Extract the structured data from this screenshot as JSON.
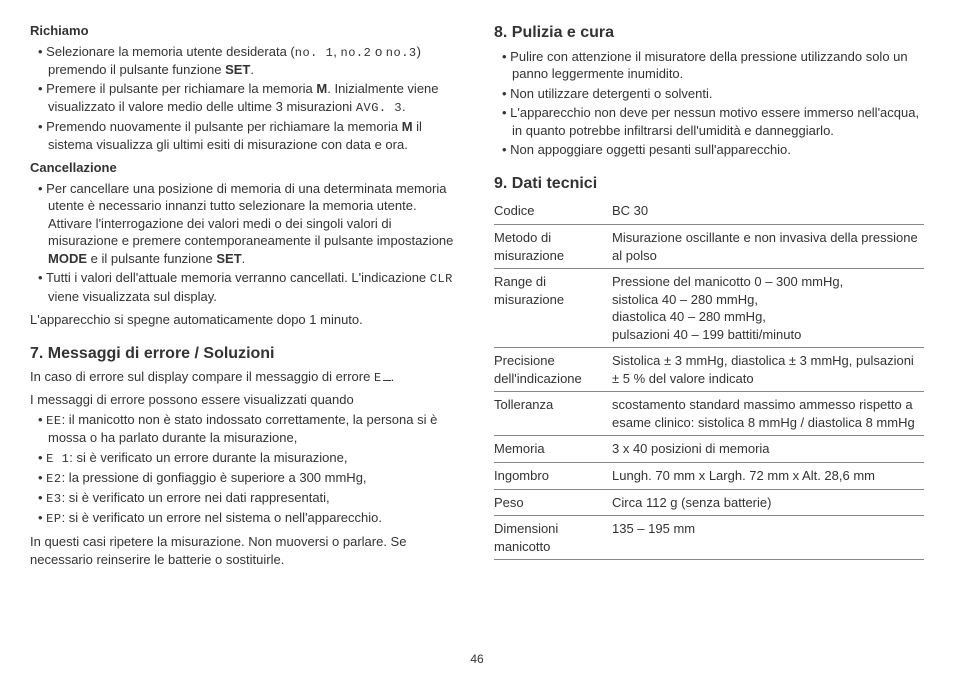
{
  "page_number": "46",
  "left": {
    "richiamo": {
      "heading": "Richiamo",
      "items": [
        "Selezionare la memoria utente desiderata (<span class='digital'>no. 1</span>, <span class='digital'>no.2</span> o <span class='digital'>no.3</span>) premendo il pulsante funzione <span class='bold'>SET</span>.",
        "Premere il pulsante per richiamare la memoria <span class='bold'>M</span>. Inizialmente viene visualizzato il valore medio delle ultime 3 misurazioni <span class='digital'>AVG. 3</span>.",
        "Premendo nuovamente il pulsante per richiamare la memoria <span class='bold'>M</span> il sistema visualizza gli ultimi esiti di misurazione con data e ora."
      ]
    },
    "cancellazione": {
      "heading": "Cancellazione",
      "items": [
        "Per cancellare una posizione di memoria di una determinata memoria utente è necessario innanzi tutto selezionare la memoria utente. Attivare l'interrogazione dei valori medi o dei singoli valori di misurazione e premere contemporaneamente il pulsante impostazione <span class='bold'>MODE</span> e il pulsante funzione <span class='bold'>SET</span>.",
        "Tutti i valori dell'attuale memoria verranno cancellati. L'indicazione <span class='digital'>CLR</span> viene visualizzata sul display."
      ],
      "after": "L'apparecchio si spegne automaticamente dopo 1 minuto."
    },
    "sec7": {
      "heading": "7. Messaggi di errore / Soluzioni",
      "intro1": "In caso di errore sul display compare il messaggio di errore <span class='digital'>E</span><span class='u'></span>.",
      "intro2": "I messaggi di errore possono essere visualizzati quando",
      "items": [
        "<span class='digital'>EE</span>: il manicotto non è stato indossato correttamente, la persona si è mossa o ha parlato durante la misurazione,",
        "<span class='digital'>E 1</span>: si è verificato un errore durante la misurazione,",
        "<span class='digital'>E2</span>: la pressione di gonfiaggio è superiore a 300 mmHg,",
        "<span class='digital'>E3</span>: si è verificato un errore nei dati rappresentati,",
        "<span class='digital'>EP</span>: si è verificato un errore nel sistema o nell'apparecchio."
      ],
      "after": "In questi casi ripetere la misurazione. Non muoversi o parlare. Se necessario reinserire le batterie o sostituirle."
    }
  },
  "right": {
    "sec8": {
      "heading": "8. Pulizia e cura",
      "items": [
        "Pulire con attenzione il misuratore della pressione utilizzando solo un panno leggermente inumidito.",
        "Non utilizzare detergenti o solventi.",
        "L'apparecchio non deve per nessun motivo essere immerso nell'acqua, in quanto potrebbe infiltrarsi dell'umidità e danneggiarlo.",
        "Non appoggiare oggetti pesanti sull'apparecchio."
      ]
    },
    "sec9": {
      "heading": "9. Dati tecnici",
      "rows": [
        {
          "label": "Codice",
          "value": "BC 30"
        },
        {
          "label": "Metodo di misurazione",
          "value": "Misurazione oscillante e non invasiva della pressione al polso"
        },
        {
          "label": "Range di misurazione",
          "value": "Pressione del manicotto 0 – 300 mmHg,<br>sistolica 40 – 280 mmHg,<br>diastolica 40 – 280 mmHg,<br>pulsazioni 40 – 199 battiti/minuto"
        },
        {
          "label": "Precisione dell'indicazione",
          "value": "Sistolica ± 3 mmHg, diastolica ± 3 mmHg, pulsazioni ± 5 % del valore indicato"
        },
        {
          "label": "Tolleranza",
          "value": "scostamento standard massimo ammesso rispetto a esame clinico: sistolica 8 mmHg / diastolica 8 mmHg"
        },
        {
          "label": "Memoria",
          "value": "3 x 40 posizioni di memoria"
        },
        {
          "label": "Ingombro",
          "value": "Lungh. 70 mm x Largh. 72 mm x Alt. 28,6 mm"
        },
        {
          "label": "Peso",
          "value": "Circa 112 g (senza batterie)"
        },
        {
          "label": "Dimensioni manicotto",
          "value": "135 – 195 mm"
        }
      ]
    }
  }
}
